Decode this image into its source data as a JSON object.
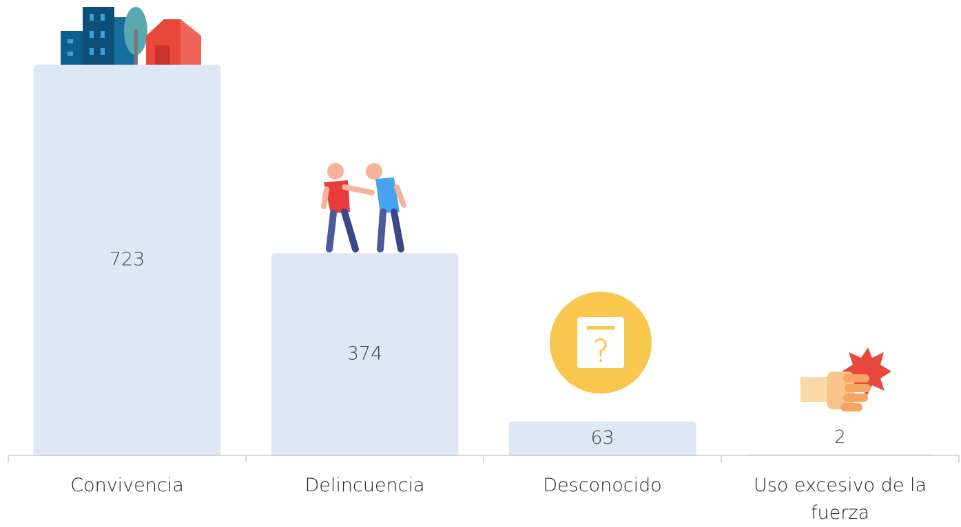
{
  "chart_data": {
    "type": "bar",
    "categories": [
      "Convivencia",
      "Delincuencia",
      "Desconocido",
      "Uso excesivo de la fuerza"
    ],
    "values": [
      723,
      374,
      63,
      2
    ],
    "color": "#dde8f4"
  }
}
